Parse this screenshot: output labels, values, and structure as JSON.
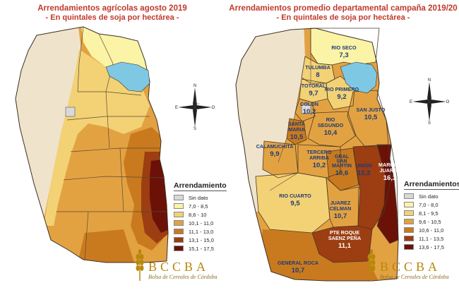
{
  "left_map": {
    "title": "Arrendamientos agrícolas agosto 2019",
    "subtitle": "- En quintales de soja por hectárea -",
    "legend": {
      "title": "Arrendamiento",
      "items": [
        {
          "label": "Sin dato",
          "color": "#d9d9d9"
        },
        {
          "label": "7,0 - 8,5",
          "color": "#fbf3a6"
        },
        {
          "label": "8,6 - 10",
          "color": "#f3d275"
        },
        {
          "label": "10,1 - 11,0",
          "color": "#e3a242"
        },
        {
          "label": "11,1 - 13,0",
          "color": "#c97a1f"
        },
        {
          "label": "13,1 - 15,0",
          "color": "#9c3d12"
        },
        {
          "label": "15,1 - 17,5",
          "color": "#6b1108"
        }
      ]
    }
  },
  "right_map": {
    "title": "Arrendamientos promedio departamental campaña 2019/20",
    "subtitle": "- En quintales de soja por hectárea -",
    "departments": [
      {
        "name": "RIO SECO",
        "value": "7,3"
      },
      {
        "name": "TULUMBA",
        "value": "8"
      },
      {
        "name": "TOTORAL",
        "value": "9,7"
      },
      {
        "name": "RIO PRIMERO",
        "value": "9,2"
      },
      {
        "name": "COLON",
        "value": "10,2"
      },
      {
        "name": "SAN JUSTO",
        "value": "10,5"
      },
      {
        "name": "SANTA MARIA",
        "value": "10,5"
      },
      {
        "name": "RIO SEGUNDO",
        "value": "10,4"
      },
      {
        "name": "CALAMUCHITA",
        "value": "9,9"
      },
      {
        "name": "TERCERO ARRIBA",
        "value": "10,2"
      },
      {
        "name": "GRAL SAN MARTIN",
        "value": "10,6"
      },
      {
        "name": "UNION",
        "value": "13,3"
      },
      {
        "name": "MARCOS JUAREZ",
        "value": "16,3"
      },
      {
        "name": "RIO CUARTO",
        "value": "9,5"
      },
      {
        "name": "JUAREZ CELMAN",
        "value": "10,7"
      },
      {
        "name": "PTE ROQUE SAENZ PEÑA",
        "value": "11,1"
      },
      {
        "name": "GENERAL ROCA",
        "value": "10,7"
      }
    ],
    "legend": {
      "title": "Arrendamientos",
      "items": [
        {
          "label": "Sin dato",
          "color": "#d9d9d9"
        },
        {
          "label": "7,0 - 8,0",
          "color": "#fbf3a6"
        },
        {
          "label": "8,1 - 9,5",
          "color": "#f3d275"
        },
        {
          "label": "9,6 - 10,5",
          "color": "#e3a242"
        },
        {
          "label": "10,6 - 11,0",
          "color": "#c97a1f"
        },
        {
          "label": "11,1 - 13,5",
          "color": "#9c3d12"
        },
        {
          "label": "13,6 - 17,5",
          "color": "#6b1108"
        }
      ]
    }
  },
  "compass": {
    "n": "N",
    "s": "S",
    "e": "E",
    "o": "O"
  },
  "logo": {
    "name": "BCCBA",
    "subtitle": "Bolsa de Cereales de Córdoba"
  },
  "colors": {
    "title": "#c0392b",
    "lake": "#7ec8e3",
    "mountains": "#efe3cc",
    "logo_gold": "#b8860b"
  }
}
